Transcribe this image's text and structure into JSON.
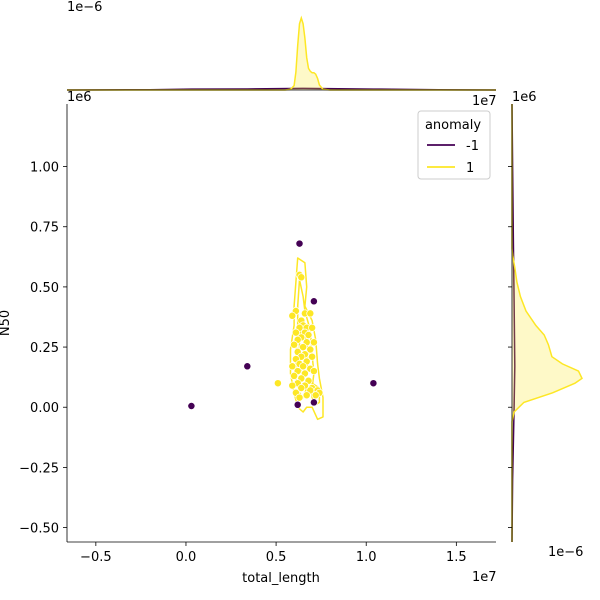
{
  "chart_data": {
    "type": "scatter",
    "xlabel": "total_length",
    "ylabel": "N50",
    "x_offset_label": "1e7",
    "y_offset_label": "1e6",
    "x_ticks": [
      -0.5,
      0.0,
      0.5,
      1.0,
      1.5
    ],
    "x_tick_labels": [
      "−0.5",
      "0.0",
      "0.5",
      "1.0",
      "1.5"
    ],
    "y_ticks": [
      -0.5,
      -0.25,
      0.0,
      0.25,
      0.5,
      0.75,
      1.0
    ],
    "y_tick_labels": [
      "−0.50",
      "−0.25",
      "0.00",
      "0.25",
      "0.50",
      "0.75",
      "1.00"
    ],
    "xlim": [
      -0.66,
      1.72
    ],
    "ylim": [
      -0.56,
      1.26
    ],
    "legend": {
      "title": "anomaly",
      "position": "top-right",
      "entries": [
        {
          "label": "-1",
          "color": "#440154"
        },
        {
          "label": "1",
          "color": "#fde725"
        }
      ]
    },
    "series": [
      {
        "name": "-1",
        "color": "#440154",
        "points": [
          [
            0.63,
            0.68
          ],
          [
            0.71,
            0.44
          ],
          [
            0.34,
            0.17
          ],
          [
            0.03,
            0.005
          ],
          [
            1.04,
            0.1
          ],
          [
            0.62,
            0.01
          ],
          [
            0.71,
            0.02
          ]
        ]
      },
      {
        "name": "1",
        "color": "#fde725",
        "points": [
          [
            0.63,
            0.55
          ],
          [
            0.64,
            0.54
          ],
          [
            0.61,
            0.4
          ],
          [
            0.66,
            0.39
          ],
          [
            0.69,
            0.39
          ],
          [
            0.59,
            0.38
          ],
          [
            0.64,
            0.36
          ],
          [
            0.65,
            0.34
          ],
          [
            0.67,
            0.33
          ],
          [
            0.7,
            0.33
          ],
          [
            0.63,
            0.33
          ],
          [
            0.61,
            0.31
          ],
          [
            0.66,
            0.31
          ],
          [
            0.68,
            0.3
          ],
          [
            0.64,
            0.29
          ],
          [
            0.62,
            0.28
          ],
          [
            0.67,
            0.27
          ],
          [
            0.71,
            0.27
          ],
          [
            0.6,
            0.26
          ],
          [
            0.65,
            0.25
          ],
          [
            0.69,
            0.24
          ],
          [
            0.62,
            0.23
          ],
          [
            0.66,
            0.22
          ],
          [
            0.64,
            0.21
          ],
          [
            0.7,
            0.21
          ],
          [
            0.61,
            0.2
          ],
          [
            0.67,
            0.19
          ],
          [
            0.63,
            0.18
          ],
          [
            0.65,
            0.17
          ],
          [
            0.59,
            0.17
          ],
          [
            0.69,
            0.16
          ],
          [
            0.62,
            0.15
          ],
          [
            0.66,
            0.14
          ],
          [
            0.71,
            0.15
          ],
          [
            0.6,
            0.13
          ],
          [
            0.64,
            0.12
          ],
          [
            0.68,
            0.11
          ],
          [
            0.62,
            0.1
          ],
          [
            0.51,
            0.1
          ],
          [
            0.59,
            0.09
          ],
          [
            0.66,
            0.09
          ],
          [
            0.64,
            0.08
          ],
          [
            0.7,
            0.08
          ],
          [
            0.73,
            0.07
          ],
          [
            0.69,
            0.07
          ],
          [
            0.61,
            0.06
          ],
          [
            0.74,
            0.06
          ],
          [
            0.67,
            0.05
          ],
          [
            0.63,
            0.04
          ],
          [
            0.72,
            0.05
          ]
        ]
      }
    ],
    "kde_contours": [
      [
        [
          0.62,
          0.62
        ],
        [
          0.66,
          0.6
        ],
        [
          0.67,
          0.5
        ],
        [
          0.66,
          0.42
        ],
        [
          0.7,
          0.36
        ],
        [
          0.72,
          0.28
        ],
        [
          0.73,
          0.18
        ],
        [
          0.74,
          0.12
        ],
        [
          0.76,
          0.04
        ],
        [
          0.76,
          -0.04
        ],
        [
          0.73,
          -0.05
        ],
        [
          0.7,
          0.0
        ],
        [
          0.67,
          0.0
        ],
        [
          0.65,
          -0.02
        ],
        [
          0.62,
          0.0
        ],
        [
          0.6,
          0.06
        ],
        [
          0.58,
          0.14
        ],
        [
          0.58,
          0.24
        ],
        [
          0.6,
          0.34
        ],
        [
          0.6,
          0.42
        ],
        [
          0.61,
          0.52
        ]
      ],
      [
        [
          0.63,
          0.53
        ],
        [
          0.65,
          0.46
        ],
        [
          0.66,
          0.4
        ],
        [
          0.69,
          0.32
        ],
        [
          0.7,
          0.22
        ],
        [
          0.71,
          0.14
        ],
        [
          0.7,
          0.08
        ],
        [
          0.67,
          0.08
        ],
        [
          0.65,
          0.04
        ],
        [
          0.63,
          0.06
        ],
        [
          0.61,
          0.12
        ],
        [
          0.61,
          0.22
        ],
        [
          0.62,
          0.32
        ],
        [
          0.62,
          0.42
        ]
      ],
      [
        [
          0.64,
          0.36
        ],
        [
          0.66,
          0.3
        ],
        [
          0.68,
          0.22
        ],
        [
          0.67,
          0.14
        ],
        [
          0.65,
          0.12
        ],
        [
          0.63,
          0.18
        ],
        [
          0.63,
          0.28
        ]
      ],
      [
        [
          0.7,
          0.1
        ],
        [
          0.74,
          0.08
        ],
        [
          0.74,
          0.02
        ],
        [
          0.72,
          0.01
        ],
        [
          0.7,
          0.04
        ]
      ]
    ],
    "marginal_x": {
      "offset_label": "1e−6",
      "density_yellow": [
        [
          -0.66,
          0.0
        ],
        [
          0.55,
          0.0
        ],
        [
          0.58,
          0.01
        ],
        [
          0.6,
          0.06
        ],
        [
          0.61,
          0.25
        ],
        [
          0.62,
          0.62
        ],
        [
          0.63,
          0.92
        ],
        [
          0.64,
          1.0
        ],
        [
          0.65,
          0.92
        ],
        [
          0.66,
          0.72
        ],
        [
          0.67,
          0.45
        ],
        [
          0.68,
          0.3
        ],
        [
          0.69,
          0.26
        ],
        [
          0.7,
          0.24
        ],
        [
          0.71,
          0.24
        ],
        [
          0.72,
          0.22
        ],
        [
          0.73,
          0.16
        ],
        [
          0.74,
          0.07
        ],
        [
          0.76,
          0.01
        ],
        [
          0.8,
          0.0
        ],
        [
          1.72,
          0.0
        ]
      ],
      "density_purple": [
        [
          -0.66,
          0.0
        ],
        [
          -0.2,
          0.004
        ],
        [
          0.03,
          0.012
        ],
        [
          0.34,
          0.014
        ],
        [
          0.65,
          0.022
        ],
        [
          1.04,
          0.012
        ],
        [
          1.4,
          0.004
        ],
        [
          1.72,
          0.0
        ]
      ]
    },
    "marginal_y": {
      "offset_label": "1e−6",
      "density_yellow": [
        [
          -0.56,
          0.0
        ],
        [
          -0.06,
          0.0
        ],
        [
          -0.02,
          0.03
        ],
        [
          0.02,
          0.17
        ],
        [
          0.06,
          0.58
        ],
        [
          0.1,
          0.9
        ],
        [
          0.12,
          1.0
        ],
        [
          0.15,
          0.95
        ],
        [
          0.18,
          0.72
        ],
        [
          0.21,
          0.57
        ],
        [
          0.26,
          0.52
        ],
        [
          0.3,
          0.46
        ],
        [
          0.34,
          0.34
        ],
        [
          0.4,
          0.2
        ],
        [
          0.46,
          0.12
        ],
        [
          0.52,
          0.07
        ],
        [
          0.58,
          0.04
        ],
        [
          0.63,
          0.01
        ],
        [
          0.66,
          0.0
        ],
        [
          1.26,
          0.0
        ]
      ],
      "density_purple": [
        [
          -0.56,
          0.0
        ],
        [
          -0.3,
          0.008
        ],
        [
          0.0,
          0.03
        ],
        [
          0.17,
          0.04
        ],
        [
          0.44,
          0.03
        ],
        [
          0.68,
          0.02
        ],
        [
          1.0,
          0.008
        ],
        [
          1.26,
          0.0
        ]
      ]
    }
  }
}
